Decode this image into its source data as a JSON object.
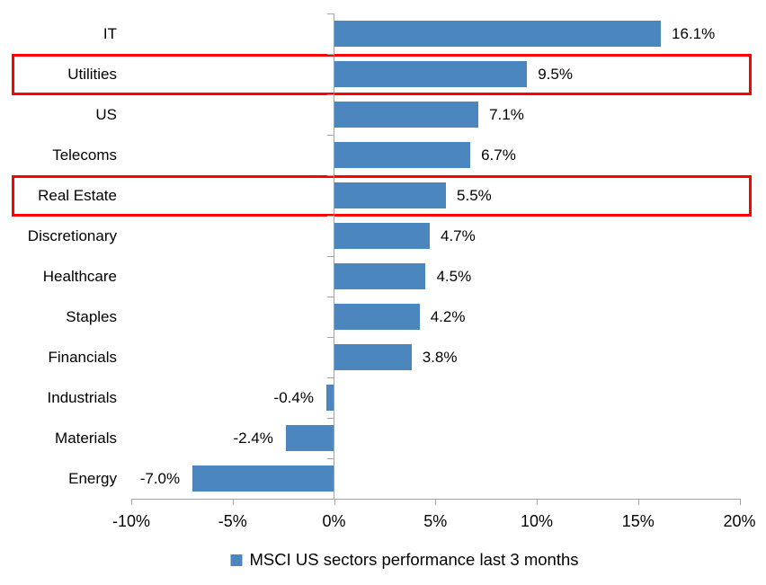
{
  "chart_data": {
    "type": "bar",
    "orientation": "horizontal",
    "categories": [
      "IT",
      "Utilities",
      "US",
      "Telecoms",
      "Real Estate",
      "Discretionary",
      "Healthcare",
      "Staples",
      "Financials",
      "Industrials",
      "Materials",
      "Energy"
    ],
    "values": [
      16.1,
      9.5,
      7.1,
      6.7,
      5.5,
      4.7,
      4.5,
      4.2,
      3.8,
      -0.4,
      -2.4,
      -7.0
    ],
    "value_labels": [
      "16.1%",
      "9.5%",
      "7.1%",
      "6.7%",
      "5.5%",
      "4.7%",
      "4.5%",
      "4.2%",
      "3.8%",
      "-0.4%",
      "-2.4%",
      "-7.0%"
    ],
    "highlighted_categories": [
      "Utilities",
      "Real Estate"
    ],
    "x_tick_values": [
      -10,
      -5,
      0,
      5,
      10,
      15,
      20
    ],
    "x_tick_labels": [
      "-10%",
      "-5%",
      "0%",
      "5%",
      "10%",
      "15%",
      "20%"
    ],
    "xlim": [
      -10,
      20
    ],
    "grid": "off",
    "legend": {
      "position": "bottom-center",
      "label": "MSCI US sectors performance last 3 months",
      "marker": "square-icon"
    },
    "colors": {
      "bar": "#4C86BE",
      "highlight_box": "#FF0000",
      "axis": "#A3A3A3",
      "text": "#000000",
      "background": "#FFFFFF"
    }
  }
}
